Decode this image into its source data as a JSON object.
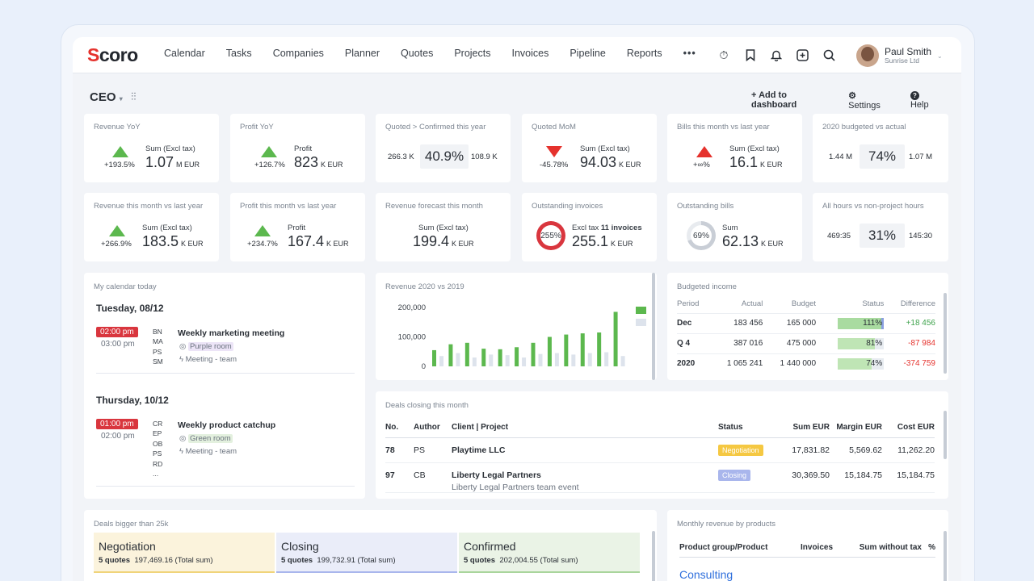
{
  "nav": {
    "logo": "Scoro",
    "items": [
      "Calendar",
      "Tasks",
      "Companies",
      "Planner",
      "Quotes",
      "Projects",
      "Invoices",
      "Pipeline",
      "Reports"
    ],
    "more": "•••"
  },
  "user": {
    "name": "Paul Smith",
    "company": "Sunrise Ltd"
  },
  "dashboard": {
    "title": "CEO",
    "add": "Add to dashboard",
    "settings": "Settings",
    "help": "Help"
  },
  "kpi1": [
    {
      "label": "Revenue YoY",
      "pct": "+193.5%",
      "sub": "Sum (Excl tax)",
      "value": "1.07",
      "unit": "M EUR"
    },
    {
      "label": "Profit YoY",
      "pct": "+126.7%",
      "sub": "Profit",
      "value": "823",
      "unit": "K EUR"
    },
    {
      "label": "Quoted > Confirmed this year",
      "left": "266.3 K",
      "hl": "40.9%",
      "right": "108.9 K"
    },
    {
      "label": "Quoted MoM",
      "pct": "-45.78%",
      "sub": "Sum (Excl tax)",
      "value": "94.03",
      "unit": "K EUR"
    },
    {
      "label": "Bills this month vs last year",
      "pct": "+∞%",
      "sub": "Sum (Excl tax)",
      "value": "16.1",
      "unit": "K EUR"
    },
    {
      "label": "2020 budgeted vs actual",
      "left": "1.44 M",
      "hl": "74%",
      "right": "1.07 M"
    }
  ],
  "kpi2": [
    {
      "label": "Revenue this month vs last year",
      "pct": "+266.9%",
      "sub": "Sum (Excl tax)",
      "value": "183.5",
      "unit": "K EUR"
    },
    {
      "label": "Profit this month vs last year",
      "pct": "+234.7%",
      "sub": "Profit",
      "value": "167.4",
      "unit": "K EUR"
    },
    {
      "label": "Revenue forecast this month",
      "sub": "Sum (Excl tax)",
      "value": "199.4",
      "unit": "K EUR"
    },
    {
      "label": "Outstanding invoices",
      "ring": "255%",
      "sub": "Excl tax",
      "sub_bold": "11 invoices",
      "value": "255.1",
      "unit": "K EUR"
    },
    {
      "label": "Outstanding bills",
      "ring": "69%",
      "sub": "Sum",
      "value": "62.13",
      "unit": "K EUR"
    },
    {
      "label": "All hours vs non-project hours",
      "left": "469:35",
      "hl": "31%",
      "right": "145:30"
    }
  ],
  "calendar": {
    "title": "My calendar today",
    "day1": "Tuesday, 08/12",
    "e1_time": "02:00 pm",
    "e1_end": "03:00 pm",
    "e1_people": [
      "BN",
      "MA",
      "PS",
      "SM"
    ],
    "e1_title": "Weekly marketing meeting",
    "e1_room": "Purple room",
    "e1_type": "Meeting - team",
    "day2": "Thursday, 10/12",
    "e2_time": "01:00 pm",
    "e2_end": "02:00 pm",
    "e2_people": [
      "CR",
      "EP",
      "OB",
      "PS",
      "RD",
      "..."
    ],
    "e2_title": "Weekly product catchup",
    "e2_room": "Green room",
    "e2_type": "Meeting - team"
  },
  "chart_data": {
    "type": "bar",
    "title": "Revenue 2020 vs 2019",
    "yticks": [
      "200,000",
      "100,000",
      "0"
    ],
    "ylim": [
      0,
      200000
    ],
    "series": [
      {
        "name": "",
        "color": "#5cb84e",
        "values": [
          55000,
          75000,
          80000,
          60000,
          58000,
          65000,
          80000,
          100000,
          108000,
          112000,
          115000,
          185000
        ]
      },
      {
        "name": "",
        "color": "#dde3ec",
        "values": [
          35000,
          45000,
          30000,
          40000,
          38000,
          30000,
          42000,
          45000,
          40000,
          45000,
          48000,
          35000
        ]
      }
    ]
  },
  "budget": {
    "title": "Budgeted income",
    "headers": [
      "Period",
      "Actual",
      "Budget",
      "Status",
      "Difference"
    ],
    "rows": [
      {
        "period": "Dec",
        "actual": "183 456",
        "budget": "165 000",
        "status": "111%",
        "fill": 1.0,
        "diff": "+18 456",
        "pos": true
      },
      {
        "period": "Q 4",
        "actual": "387 016",
        "budget": "475 000",
        "status": "81%",
        "fill": 0.81,
        "diff": "-87 984",
        "pos": false
      },
      {
        "period": "2020",
        "actual": "1 065 241",
        "budget": "1 440 000",
        "status": "74%",
        "fill": 0.74,
        "diff": "-374 759",
        "pos": false
      }
    ]
  },
  "deals": {
    "title": "Deals closing this month",
    "headers": [
      "No.",
      "Author",
      "Client | Project",
      "Status",
      "Sum EUR",
      "Margin EUR",
      "Cost EUR"
    ],
    "rows": [
      {
        "no": "78",
        "author": "PS",
        "client": "Playtime LLC",
        "project": "",
        "status": "Negotiation",
        "sum": "17,831.82",
        "margin": "5,569.62",
        "cost": "11,262.20"
      },
      {
        "no": "97",
        "author": "CB",
        "client": "Liberty Legal Partners",
        "project": "Liberty Legal Partners team event",
        "status": "Closing",
        "sum": "30,369.50",
        "margin": "15,184.75",
        "cost": "15,184.75"
      }
    ]
  },
  "big_deals": {
    "title": "Deals bigger than 25k",
    "cols": [
      {
        "name": "Negotiation",
        "count": "5 quotes",
        "sum": "197,469.16 (Total sum)"
      },
      {
        "name": "Closing",
        "count": "5 quotes",
        "sum": "199,732.91 (Total sum)"
      },
      {
        "name": "Confirmed",
        "count": "5 quotes",
        "sum": "202,004.55 (Total sum)"
      }
    ]
  },
  "monthly": {
    "title": "Monthly revenue by products",
    "headers": [
      "Product group/Product",
      "Invoices",
      "Sum without tax",
      "%"
    ],
    "first": "Consulting"
  },
  "colors": {
    "accent": "#e5322d",
    "green": "#5cb84e",
    "red": "#e5322d",
    "link": "#2f6fdc"
  }
}
